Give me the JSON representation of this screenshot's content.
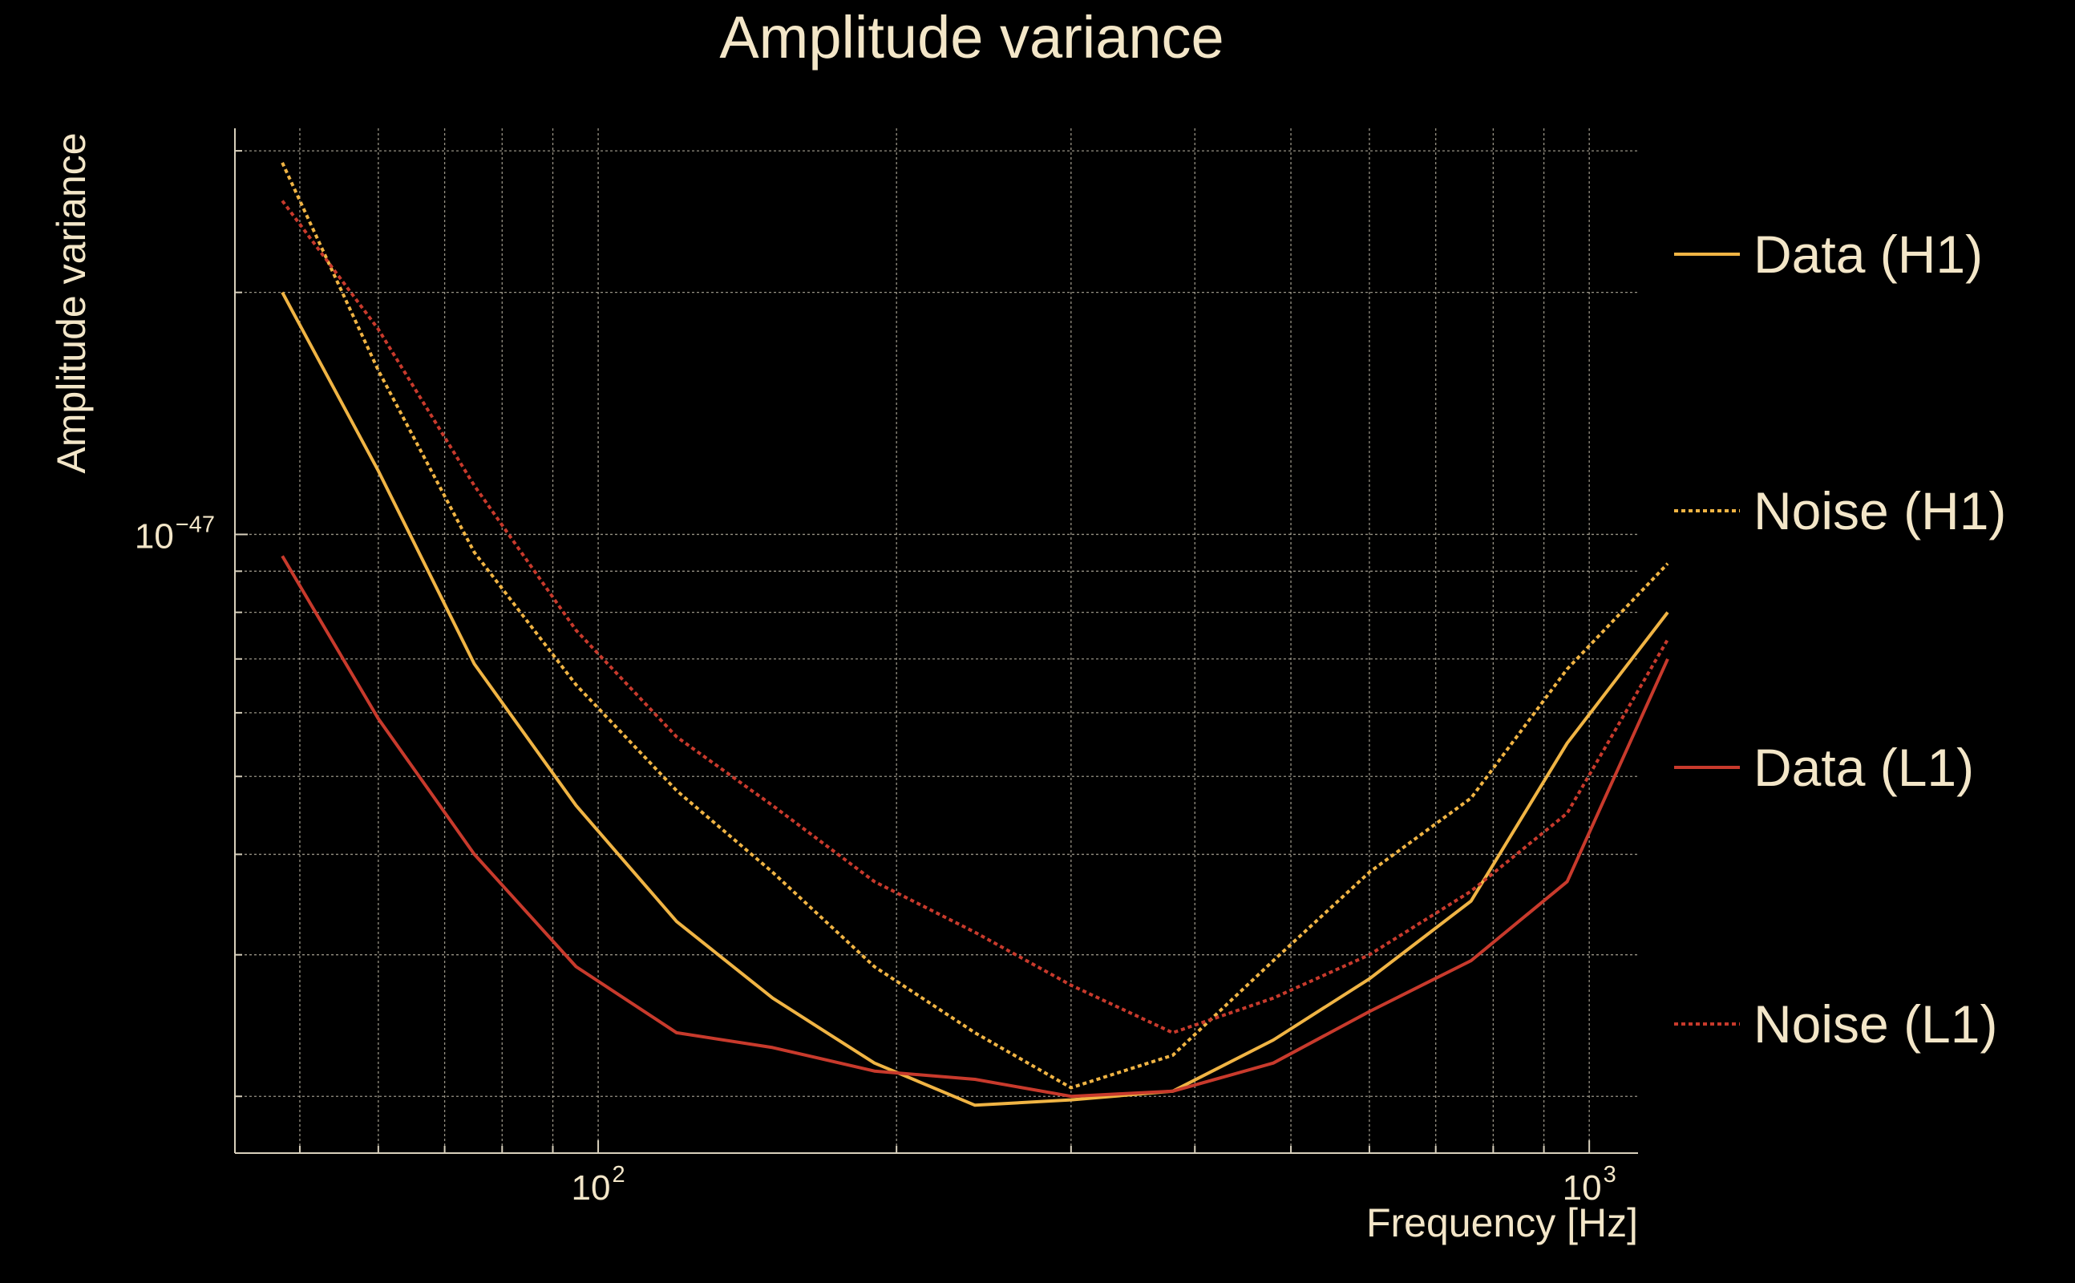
{
  "chart_data": {
    "type": "line",
    "title": "Amplitude variance",
    "xlabel": "Frequency [Hz]",
    "ylabel": "Amplitude variance",
    "xscale": "log",
    "yscale": "log",
    "xlim": [
      43,
      1120
    ],
    "ylim": [
      1.7e-48,
      3.2e-47
    ],
    "grid": true,
    "legend_position": "right",
    "x_ticks": [
      {
        "base": "10",
        "exp": "2",
        "value": 100
      },
      {
        "base": "10",
        "exp": "3",
        "value": 1000
      }
    ],
    "y_ticks": [
      {
        "base": "10",
        "exp": "−47",
        "value": 1e-47
      }
    ],
    "x": [
      48,
      60,
      75,
      95,
      120,
      150,
      190,
      240,
      300,
      380,
      480,
      600,
      760,
      950,
      1200
    ],
    "series": [
      {
        "name": "Data (H1)",
        "color": "#f0b444",
        "dash": "solid",
        "values": [
          2e-47,
          1.2e-47,
          6.9e-48,
          4.6e-48,
          3.3e-48,
          2.65e-48,
          2.2e-48,
          1.95e-48,
          1.98e-48,
          2.03e-48,
          2.35e-48,
          2.8e-48,
          3.5e-48,
          5.5e-48,
          8e-48
        ]
      },
      {
        "name": "Noise (H1)",
        "color": "#f0b444",
        "dash": "dotted",
        "values": [
          2.9e-47,
          1.6e-47,
          9.5e-48,
          6.5e-48,
          4.8e-48,
          3.8e-48,
          2.9e-48,
          2.4e-48,
          2.05e-48,
          2.25e-48,
          2.95e-48,
          3.8e-48,
          4.7e-48,
          6.8e-48,
          9.2e-48
        ]
      },
      {
        "name": "Data (L1)",
        "color": "#c83a2c",
        "dash": "solid",
        "values": [
          9.4e-48,
          5.9e-48,
          4e-48,
          2.9e-48,
          2.4e-48,
          2.3e-48,
          2.15e-48,
          2.1e-48,
          2e-48,
          2.03e-48,
          2.2e-48,
          2.55e-48,
          2.95e-48,
          3.7e-48,
          7e-48
        ]
      },
      {
        "name": "Noise (L1)",
        "color": "#c83a2c",
        "dash": "dotted",
        "values": [
          2.6e-47,
          1.8e-47,
          1.15e-47,
          7.6e-48,
          5.6e-48,
          4.6e-48,
          3.7e-48,
          3.2e-48,
          2.75e-48,
          2.4e-48,
          2.65e-48,
          3e-48,
          3.6e-48,
          4.5e-48,
          7.4e-48
        ]
      }
    ]
  }
}
